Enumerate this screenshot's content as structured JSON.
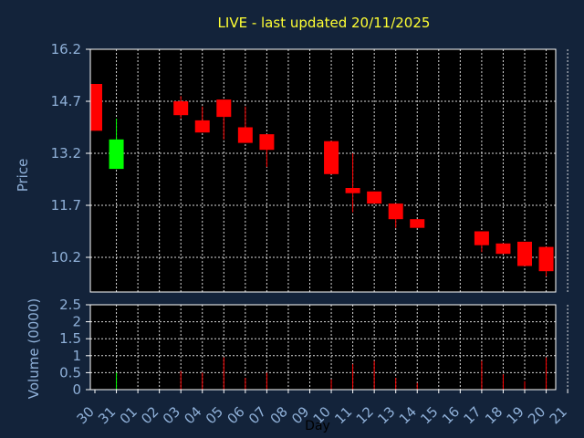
{
  "chart_data": [
    {
      "type": "candlestick",
      "title": "LIVE - last updated 20/11/2025",
      "ylabel": "Price",
      "ylim": [
        9.3,
        16.2
      ],
      "yticks": [
        16.2,
        14.7,
        13.2,
        11.7,
        10.2
      ],
      "grid": true,
      "colors": {
        "up": "#00ff00",
        "down": "#ff0000"
      },
      "categories": [
        "30",
        "31",
        "01",
        "02",
        "03",
        "04",
        "05",
        "06",
        "07",
        "08",
        "09",
        "10",
        "11",
        "12",
        "13",
        "14",
        "15",
        "16",
        "17",
        "18",
        "19",
        "20",
        "21"
      ],
      "candles": [
        {
          "day": "30",
          "open": 15.2,
          "high": 15.2,
          "low": 13.85,
          "close": 13.85
        },
        {
          "day": "31",
          "open": 12.75,
          "high": 14.2,
          "low": 12.75,
          "close": 13.6
        },
        {
          "day": "03",
          "open": 14.7,
          "high": 14.85,
          "low": 14.2,
          "close": 14.3
        },
        {
          "day": "04",
          "open": 14.15,
          "high": 14.55,
          "low": 13.8,
          "close": 13.8
        },
        {
          "day": "05",
          "open": 14.75,
          "high": 14.75,
          "low": 13.6,
          "close": 14.25
        },
        {
          "day": "06",
          "open": 13.95,
          "high": 14.55,
          "low": 13.5,
          "close": 13.5
        },
        {
          "day": "07",
          "open": 13.75,
          "high": 13.75,
          "low": 12.8,
          "close": 13.3
        },
        {
          "day": "10",
          "open": 13.55,
          "high": 13.55,
          "low": 12.6,
          "close": 12.6
        },
        {
          "day": "11",
          "open": 12.2,
          "high": 13.2,
          "low": 11.5,
          "close": 12.05
        },
        {
          "day": "12",
          "open": 12.1,
          "high": 12.1,
          "low": 11.75,
          "close": 11.75
        },
        {
          "day": "13",
          "open": 11.75,
          "high": 11.75,
          "low": 11.05,
          "close": 11.3
        },
        {
          "day": "14",
          "open": 11.3,
          "high": 11.3,
          "low": 11.05,
          "close": 11.05
        },
        {
          "day": "17",
          "open": 10.95,
          "high": 10.95,
          "low": 10.35,
          "close": 10.55
        },
        {
          "day": "18",
          "open": 10.6,
          "high": 10.6,
          "low": 10.3,
          "close": 10.3
        },
        {
          "day": "19",
          "open": 10.65,
          "high": 10.65,
          "low": 9.95,
          "close": 9.95
        },
        {
          "day": "20",
          "open": 10.5,
          "high": 10.5,
          "low": 9.65,
          "close": 9.8
        }
      ]
    },
    {
      "type": "bar",
      "ylabel": "Volume (0000)",
      "xlabel": "Day",
      "ylim": [
        0,
        2.5
      ],
      "yticks": [
        "0",
        "0.5",
        "1",
        "1.5",
        "2",
        "2.5"
      ],
      "grid": true,
      "categories": [
        "30",
        "31",
        "01",
        "02",
        "03",
        "04",
        "05",
        "06",
        "07",
        "08",
        "09",
        "10",
        "11",
        "12",
        "13",
        "14",
        "15",
        "16",
        "17",
        "18",
        "19",
        "20",
        "21"
      ],
      "values": [
        {
          "day": "31",
          "value": 0.5,
          "color": "#00ff00"
        },
        {
          "day": "03",
          "value": 0.55,
          "color": "#ff0000"
        },
        {
          "day": "04",
          "value": 0.5,
          "color": "#ff0000"
        },
        {
          "day": "05",
          "value": 0.95,
          "color": "#ff0000"
        },
        {
          "day": "06",
          "value": 0.35,
          "color": "#ff0000"
        },
        {
          "day": "07",
          "value": 0.5,
          "color": "#ff0000"
        },
        {
          "day": "10",
          "value": 0.3,
          "color": "#ff0000"
        },
        {
          "day": "11",
          "value": 0.75,
          "color": "#ff0000"
        },
        {
          "day": "12",
          "value": 0.85,
          "color": "#ff0000"
        },
        {
          "day": "13",
          "value": 0.35,
          "color": "#ff0000"
        },
        {
          "day": "14",
          "value": 0.2,
          "color": "#ff0000"
        },
        {
          "day": "17",
          "value": 0.85,
          "color": "#ff0000"
        },
        {
          "day": "18",
          "value": 0.45,
          "color": "#ff0000"
        },
        {
          "day": "19",
          "value": 0.25,
          "color": "#ff0000"
        },
        {
          "day": "20",
          "value": 0.95,
          "color": "#ff0000"
        }
      ]
    }
  ]
}
